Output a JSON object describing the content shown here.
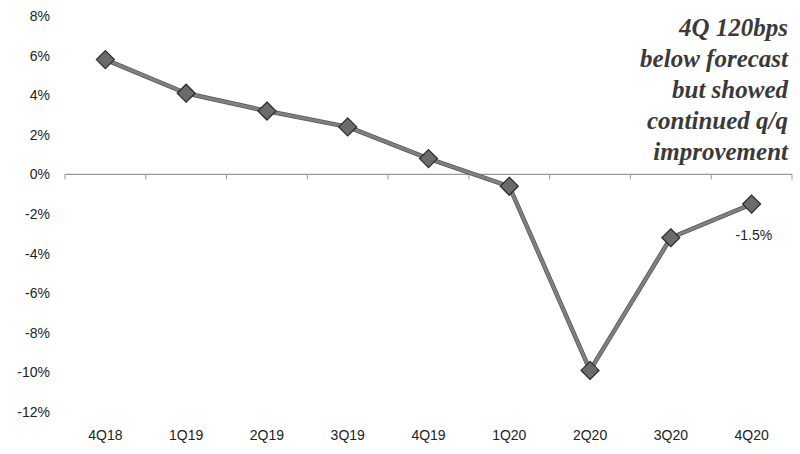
{
  "chart_data": {
    "type": "line",
    "categories": [
      "4Q18",
      "1Q19",
      "2Q19",
      "3Q19",
      "4Q19",
      "1Q20",
      "2Q20",
      "3Q20",
      "4Q20"
    ],
    "values": [
      5.8,
      4.1,
      3.2,
      2.4,
      0.8,
      -0.6,
      -9.9,
      -3.2,
      -1.5
    ],
    "value_labels": [
      null,
      null,
      null,
      null,
      null,
      null,
      null,
      null,
      "-1.5%"
    ],
    "data_labels": true,
    "color": "#808080",
    "marker": "diamond",
    "ylim": [
      -12,
      8
    ],
    "yticks": [
      {
        "value": -12,
        "label": "-12%"
      },
      {
        "value": -10,
        "label": "-10%"
      },
      {
        "value": -8,
        "label": "-8%"
      },
      {
        "value": -6,
        "label": "-6%"
      },
      {
        "value": -4,
        "label": "-4%"
      },
      {
        "value": -2,
        "label": "-2%"
      },
      {
        "value": 0,
        "label": "0%"
      },
      {
        "value": 2,
        "label": "2%"
      },
      {
        "value": 4,
        "label": "4%"
      },
      {
        "value": 6,
        "label": "6%"
      },
      {
        "value": 8,
        "label": "8%"
      }
    ],
    "grid": false,
    "annotation": [
      "4Q 120bps",
      "below forecast",
      "but showed",
      "continued q/q",
      "improvement"
    ]
  }
}
